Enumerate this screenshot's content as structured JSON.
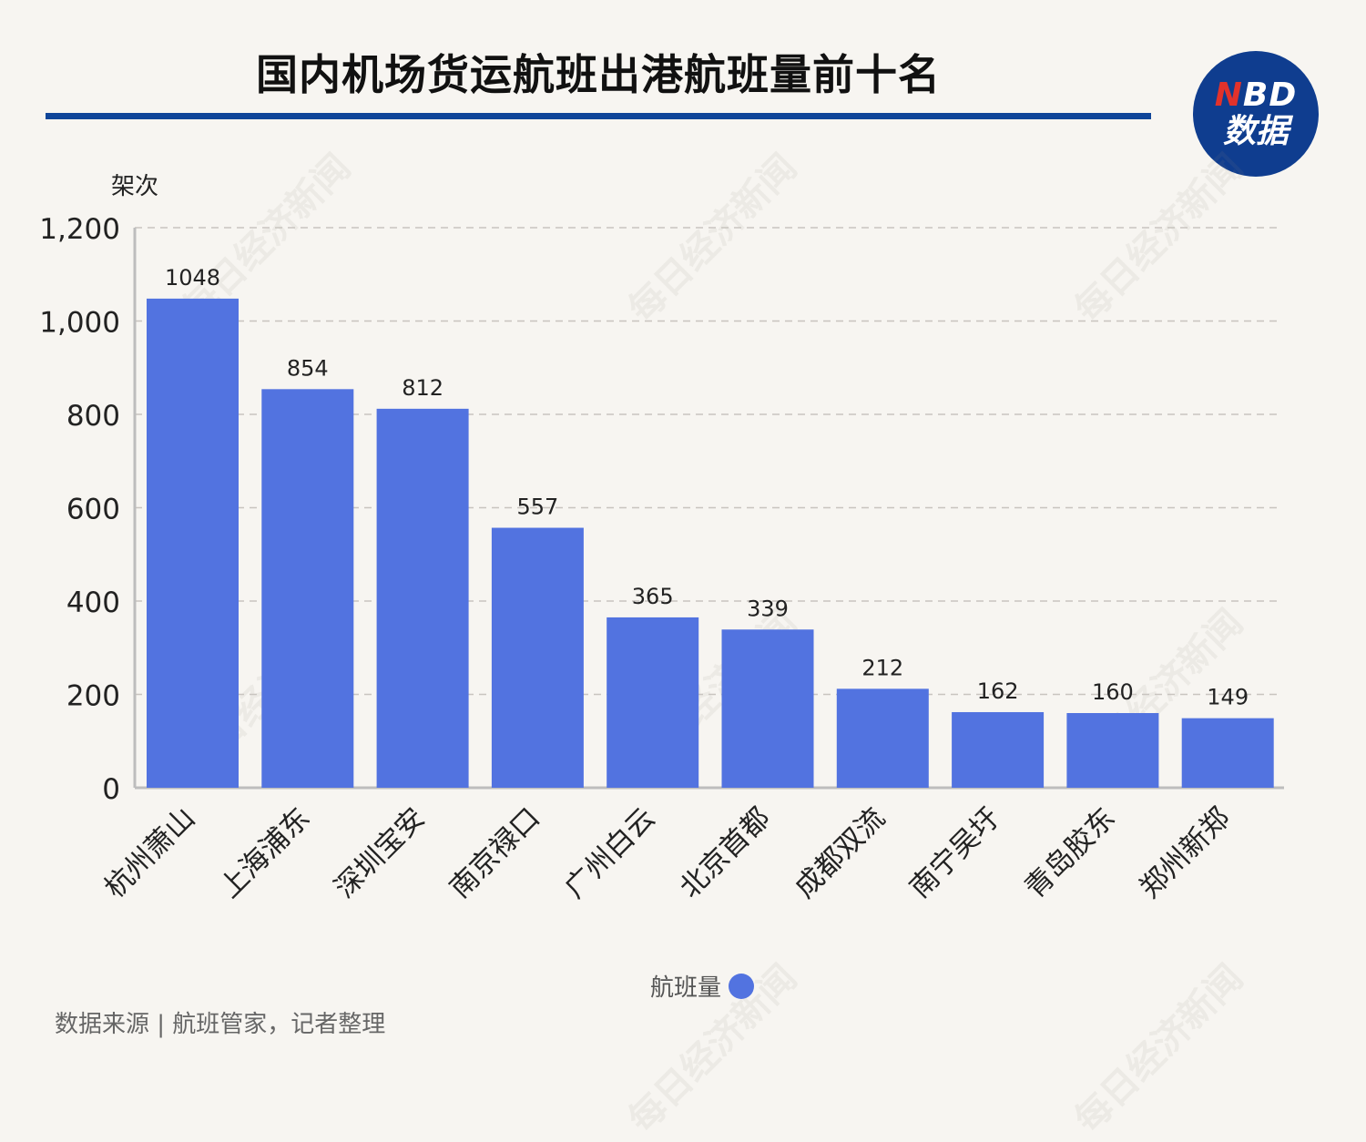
{
  "header": {
    "title": "国内机场货运航班出港航班量前十名"
  },
  "logo": {
    "line1_accent": "N",
    "line1_rest": "BD",
    "line2": "数据"
  },
  "footer": {
    "source": "数据来源 | 航班管家，记者整理"
  },
  "watermark_text": "每日经济新闻",
  "colors": {
    "bar": "#5273e0",
    "title_rule": "#0f4599",
    "logo_bg": "#0f3d8f",
    "logo_accent": "#e2322b",
    "background": "#f7f5f1"
  },
  "chart_data": {
    "type": "bar",
    "title": "国内机场货运航班出港航班量前十名",
    "ylabel": "架次",
    "xlabel": "",
    "ylim": [
      0,
      1200
    ],
    "yticks": [
      0,
      200,
      400,
      600,
      800,
      1000,
      1200
    ],
    "ytick_labels": [
      "0",
      "200",
      "400",
      "600",
      "800",
      "1,000",
      "1,200"
    ],
    "grid": true,
    "legend_position": "bottom-center",
    "categories": [
      "杭州萧山",
      "上海浦东",
      "深圳宝安",
      "南京禄口",
      "广州白云",
      "北京首都",
      "成都双流",
      "南宁吴圩",
      "青岛胶东",
      "郑州新郑"
    ],
    "series": [
      {
        "name": "航班量",
        "values": [
          1048,
          854,
          812,
          557,
          365,
          339,
          212,
          162,
          160,
          149
        ]
      }
    ]
  }
}
